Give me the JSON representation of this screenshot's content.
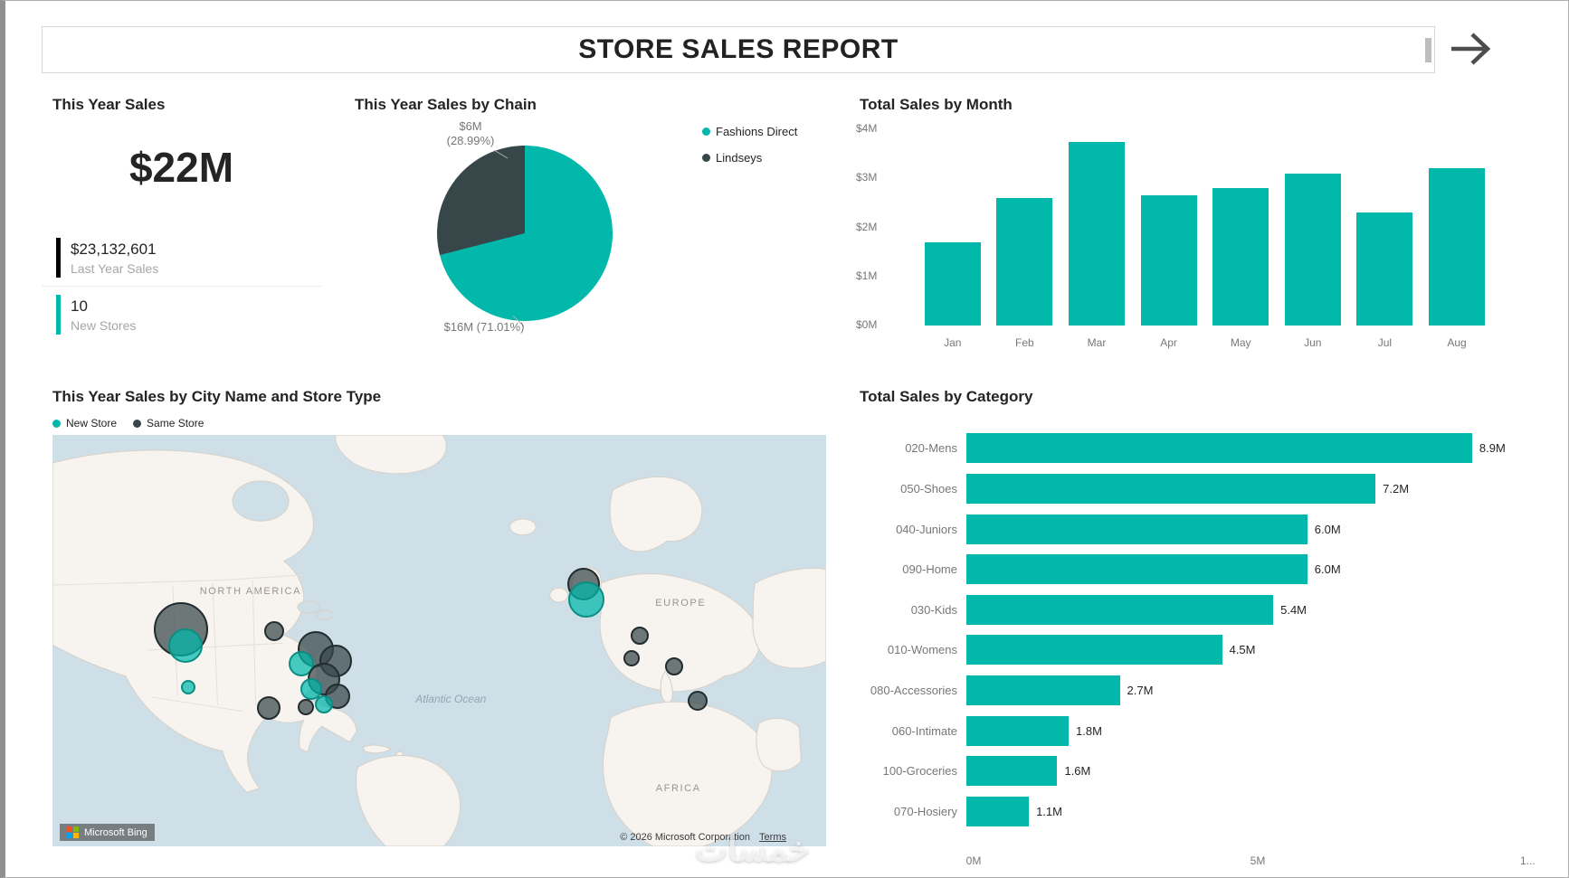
{
  "header": {
    "title": "STORE SALES REPORT"
  },
  "colors": {
    "accent_teal": "#01B8AA",
    "accent_dark": "#374649"
  },
  "kpi": {
    "title": "This Year Sales",
    "value": "$22M",
    "last_year_value": "$23,132,601",
    "last_year_label": "Last Year Sales",
    "new_stores_value": "10",
    "new_stores_label": "New Stores"
  },
  "chart_data": [
    {
      "id": "chain_pie",
      "type": "pie",
      "title": "This Year Sales by Chain",
      "slices": [
        {
          "label": "Fashions Direct",
          "value": 16,
          "pct": 71.01,
          "value_label": "$16M (71.01%)",
          "color": "#01B8AA"
        },
        {
          "label": "Lindseys",
          "value": 6,
          "pct": 28.99,
          "value_label": "$6M (28.99%)",
          "color": "#374649"
        }
      ],
      "callouts": [
        {
          "lines": [
            "$6M",
            "(28.99%)"
          ],
          "x": 80,
          "y": 34,
          "w": 120
        },
        {
          "lines": [
            "$16M (71.01%)"
          ],
          "x": 85,
          "y": 256,
          "w": 140
        }
      ],
      "legend_position": "top-right"
    },
    {
      "id": "month_bar",
      "type": "bar",
      "title": "Total Sales by Month",
      "categories": [
        "Jan",
        "Feb",
        "Mar",
        "Apr",
        "May",
        "Jun",
        "Jul",
        "Aug"
      ],
      "values": [
        1.7,
        2.6,
        3.75,
        2.65,
        2.8,
        3.1,
        2.3,
        3.2
      ],
      "ylim": [
        0,
        4
      ],
      "ytick_labels": [
        "$0M",
        "$1M",
        "$2M",
        "$3M",
        "$4M"
      ],
      "grid": false,
      "bar_color": "#01B8AA"
    },
    {
      "id": "category_bar",
      "type": "bar",
      "orientation": "horizontal",
      "title": "Total Sales by Category",
      "categories": [
        "020-Mens",
        "050-Shoes",
        "040-Juniors",
        "090-Home",
        "030-Kids",
        "010-Womens",
        "080-Accessories",
        "060-Intimate",
        "100-Groceries",
        "070-Hosiery"
      ],
      "values": [
        8.9,
        7.2,
        6.0,
        6.0,
        5.4,
        4.5,
        2.7,
        1.8,
        1.6,
        1.1
      ],
      "value_labels": [
        "8.9M",
        "7.2M",
        "6.0M",
        "6.0M",
        "5.4M",
        "4.5M",
        "2.7M",
        "1.8M",
        "1.6M",
        "1.1M"
      ],
      "xlim": [
        0,
        10
      ],
      "xtick_labels": [
        "0M",
        "5M",
        "1..."
      ],
      "bar_color": "#01B8AA"
    },
    {
      "id": "city_map",
      "type": "scatter",
      "title": "This Year Sales by City Name and Store Type",
      "legend": [
        {
          "label": "New Store",
          "color": "#01B8AA",
          "type": "new"
        },
        {
          "label": "Same Store",
          "color": "#374649",
          "type": "same"
        }
      ],
      "region_labels": [
        {
          "text": "NORTH AMERICA",
          "x": 25.6,
          "y": 38.0,
          "kind": "region"
        },
        {
          "text": "EUROPE",
          "x": 81.2,
          "y": 40.9,
          "kind": "region"
        },
        {
          "text": "AFRICA",
          "x": 80.9,
          "y": 85.9,
          "kind": "region"
        },
        {
          "text": "Atlantic Ocean",
          "x": 51.5,
          "y": 64.2,
          "kind": "water"
        }
      ],
      "bubbles": [
        {
          "x": 16.6,
          "y": 47.2,
          "r": 30,
          "type": "same"
        },
        {
          "x": 17.2,
          "y": 51.3,
          "r": 19,
          "type": "new"
        },
        {
          "x": 17.5,
          "y": 61.3,
          "r": 8,
          "type": "new"
        },
        {
          "x": 28.6,
          "y": 47.7,
          "r": 11,
          "type": "same"
        },
        {
          "x": 27.9,
          "y": 66.4,
          "r": 13,
          "type": "same"
        },
        {
          "x": 34.0,
          "y": 52.1,
          "r": 20,
          "type": "same"
        },
        {
          "x": 36.6,
          "y": 55.0,
          "r": 18,
          "type": "same"
        },
        {
          "x": 32.2,
          "y": 55.5,
          "r": 14,
          "type": "new"
        },
        {
          "x": 35.1,
          "y": 59.4,
          "r": 18,
          "type": "same"
        },
        {
          "x": 33.4,
          "y": 61.8,
          "r": 12,
          "type": "new"
        },
        {
          "x": 36.9,
          "y": 63.5,
          "r": 14,
          "type": "same"
        },
        {
          "x": 35.1,
          "y": 65.5,
          "r": 10,
          "type": "new"
        },
        {
          "x": 32.7,
          "y": 66.2,
          "r": 9,
          "type": "same"
        },
        {
          "x": 68.7,
          "y": 36.3,
          "r": 18,
          "type": "same"
        },
        {
          "x": 69.0,
          "y": 39.9,
          "r": 20,
          "type": "new"
        },
        {
          "x": 75.9,
          "y": 48.7,
          "r": 10,
          "type": "same"
        },
        {
          "x": 74.8,
          "y": 54.3,
          "r": 9,
          "type": "same"
        },
        {
          "x": 80.3,
          "y": 56.2,
          "r": 10,
          "type": "same"
        },
        {
          "x": 83.4,
          "y": 64.7,
          "r": 11,
          "type": "same"
        }
      ],
      "attribution": {
        "brand": "Microsoft Bing",
        "copyright": "© 2026 Microsoft Corporation",
        "terms_label": "Terms"
      },
      "watermark": "خمسات"
    }
  ]
}
